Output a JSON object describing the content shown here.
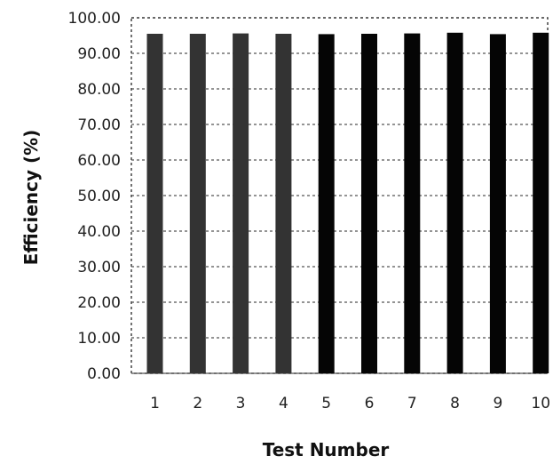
{
  "chart_data": {
    "type": "bar",
    "title": "",
    "xlabel": "Test Number",
    "ylabel": "Efficiency (%)",
    "categories": [
      "1",
      "2",
      "3",
      "4",
      "5",
      "6",
      "7",
      "8",
      "9",
      "10"
    ],
    "values": [
      95.5,
      95.5,
      95.6,
      95.5,
      95.4,
      95.5,
      95.6,
      95.8,
      95.4,
      95.8
    ],
    "ylim": [
      0,
      100
    ],
    "ytick_labels": [
      "0.00",
      "10.00",
      "20.00",
      "30.00",
      "40.00",
      "50.00",
      "60.00",
      "70.00",
      "80.00",
      "90.00",
      "100.00"
    ],
    "grid": true,
    "legend": "none",
    "colors": {
      "bars_1_to_4": "#333333",
      "bars_5_to_10": "#050505",
      "grid": "#555555",
      "frame": "#444444"
    }
  }
}
